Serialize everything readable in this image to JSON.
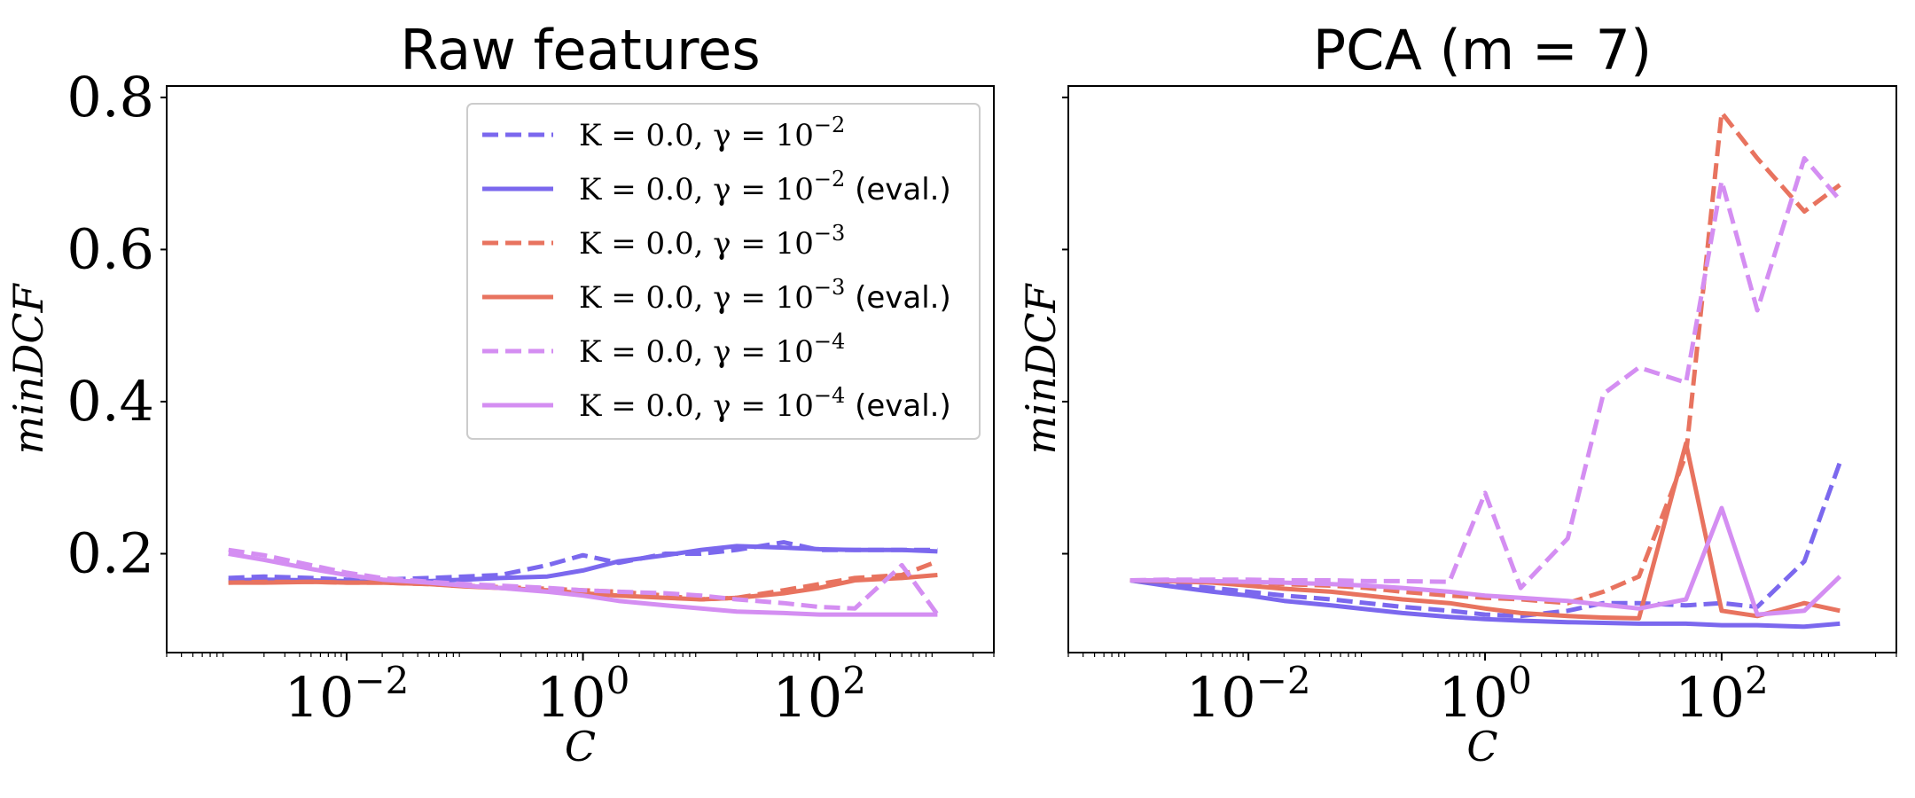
{
  "chart_data": [
    {
      "type": "line",
      "title": "Raw features",
      "xlabel": "C",
      "ylabel": "minDCF",
      "xscale": "log",
      "xlim": [
        0.0003,
        3000
      ],
      "ylim": [
        0.07,
        0.815
      ],
      "xticks": [
        {
          "value": 0.01,
          "base": "10",
          "exp": "−2"
        },
        {
          "value": 1,
          "base": "10",
          "exp": "0"
        },
        {
          "value": 100,
          "base": "10",
          "exp": "2"
        }
      ],
      "yticks": [
        {
          "value": 0.2,
          "label": "0.2"
        },
        {
          "value": 0.4,
          "label": "0.4"
        },
        {
          "value": 0.6,
          "label": "0.6"
        },
        {
          "value": 0.8,
          "label": "0.8"
        }
      ],
      "show_ytick_labels": true,
      "legend": {
        "location": "upper right",
        "entries": [
          {
            "pre": "K = 0.0, γ = 10",
            "exp": "−2",
            "suffix": ""
          },
          {
            "pre": "K = 0.0, γ = 10",
            "exp": "−2",
            "suffix": " (eval.)"
          },
          {
            "pre": "K = 0.0, γ = 10",
            "exp": "−3",
            "suffix": ""
          },
          {
            "pre": "K = 0.0, γ = 10",
            "exp": "−3",
            "suffix": " (eval.)"
          },
          {
            "pre": "K = 0.0, γ = 10",
            "exp": "−4",
            "suffix": ""
          },
          {
            "pre": "K = 0.0, γ = 10",
            "exp": "−4",
            "suffix": " (eval.)"
          }
        ]
      },
      "x": [
        0.001,
        0.002,
        0.005,
        0.01,
        0.02,
        0.05,
        0.1,
        0.2,
        0.5,
        1,
        2,
        5,
        10,
        20,
        50,
        100,
        200,
        500,
        1000
      ],
      "series": [
        {
          "color": "#7b68ee",
          "dashed": true,
          "values": [
            0.168,
            0.17,
            0.168,
            0.166,
            0.166,
            0.168,
            0.17,
            0.172,
            0.185,
            0.198,
            0.188,
            0.2,
            0.2,
            0.205,
            0.215,
            0.205,
            0.205,
            0.205,
            0.205
          ]
        },
        {
          "color": "#7b68ee",
          "dashed": false,
          "values": [
            0.165,
            0.166,
            0.165,
            0.164,
            0.163,
            0.164,
            0.166,
            0.168,
            0.17,
            0.178,
            0.19,
            0.198,
            0.205,
            0.21,
            0.208,
            0.206,
            0.205,
            0.205,
            0.203
          ]
        },
        {
          "color": "#e8735f",
          "dashed": true,
          "values": [
            0.162,
            0.163,
            0.163,
            0.162,
            0.162,
            0.16,
            0.158,
            0.156,
            0.154,
            0.152,
            0.15,
            0.145,
            0.14,
            0.142,
            0.152,
            0.16,
            0.168,
            0.172,
            0.19
          ]
        },
        {
          "color": "#e8735f",
          "dashed": false,
          "values": [
            0.162,
            0.162,
            0.163,
            0.162,
            0.162,
            0.16,
            0.157,
            0.155,
            0.152,
            0.148,
            0.145,
            0.142,
            0.14,
            0.142,
            0.148,
            0.155,
            0.165,
            0.168,
            0.172
          ]
        },
        {
          "color": "#d48ef2",
          "dashed": true,
          "values": [
            0.205,
            0.198,
            0.185,
            0.175,
            0.168,
            0.163,
            0.16,
            0.158,
            0.155,
            0.152,
            0.15,
            0.148,
            0.145,
            0.14,
            0.135,
            0.13,
            0.128,
            0.185,
            0.12
          ]
        },
        {
          "color": "#d48ef2",
          "dashed": false,
          "values": [
            0.2,
            0.192,
            0.18,
            0.172,
            0.166,
            0.162,
            0.158,
            0.155,
            0.15,
            0.145,
            0.138,
            0.132,
            0.128,
            0.124,
            0.122,
            0.12,
            0.12,
            0.12,
            0.12
          ]
        }
      ]
    },
    {
      "type": "line",
      "title": "PCA (m = 7)",
      "xlabel": "C",
      "ylabel": "minDCF",
      "xscale": "log",
      "xlim": [
        0.0003,
        3000
      ],
      "ylim": [
        0.07,
        0.815
      ],
      "xticks": [
        {
          "value": 0.01,
          "base": "10",
          "exp": "−2"
        },
        {
          "value": 1,
          "base": "10",
          "exp": "0"
        },
        {
          "value": 100,
          "base": "10",
          "exp": "2"
        }
      ],
      "yticks": [
        {
          "value": 0.2,
          "label": ""
        },
        {
          "value": 0.4,
          "label": ""
        },
        {
          "value": 0.6,
          "label": ""
        },
        {
          "value": 0.8,
          "label": ""
        }
      ],
      "show_ytick_labels": false,
      "x": [
        0.001,
        0.002,
        0.005,
        0.01,
        0.02,
        0.05,
        0.1,
        0.2,
        0.5,
        1,
        2,
        5,
        10,
        20,
        50,
        100,
        200,
        500,
        1000
      ],
      "series": [
        {
          "color": "#7b68ee",
          "dashed": true,
          "values": [
            0.165,
            0.16,
            0.155,
            0.15,
            0.145,
            0.14,
            0.135,
            0.13,
            0.125,
            0.12,
            0.118,
            0.125,
            0.135,
            0.135,
            0.132,
            0.135,
            0.13,
            0.19,
            0.32
          ]
        },
        {
          "color": "#7b68ee",
          "dashed": false,
          "values": [
            0.165,
            0.158,
            0.15,
            0.145,
            0.138,
            0.132,
            0.127,
            0.122,
            0.117,
            0.114,
            0.112,
            0.11,
            0.109,
            0.108,
            0.108,
            0.106,
            0.106,
            0.104,
            0.108
          ]
        },
        {
          "color": "#e8735f",
          "dashed": true,
          "values": [
            0.165,
            0.165,
            0.164,
            0.162,
            0.16,
            0.158,
            0.155,
            0.15,
            0.145,
            0.142,
            0.14,
            0.135,
            0.15,
            0.17,
            0.33,
            0.78,
            0.72,
            0.65,
            0.685
          ]
        },
        {
          "color": "#e8735f",
          "dashed": false,
          "values": [
            0.165,
            0.164,
            0.162,
            0.158,
            0.154,
            0.15,
            0.145,
            0.14,
            0.135,
            0.128,
            0.122,
            0.118,
            0.116,
            0.115,
            0.345,
            0.125,
            0.118,
            0.135,
            0.125
          ]
        },
        {
          "color": "#d48ef2",
          "dashed": true,
          "values": [
            0.165,
            0.166,
            0.166,
            0.166,
            0.165,
            0.165,
            0.164,
            0.164,
            0.163,
            0.28,
            0.155,
            0.22,
            0.41,
            0.445,
            0.425,
            0.69,
            0.52,
            0.72,
            0.665
          ]
        },
        {
          "color": "#d48ef2",
          "dashed": false,
          "values": [
            0.165,
            0.165,
            0.164,
            0.163,
            0.162,
            0.16,
            0.158,
            0.155,
            0.15,
            0.145,
            0.142,
            0.138,
            0.133,
            0.128,
            0.14,
            0.26,
            0.12,
            0.125,
            0.17
          ]
        }
      ]
    }
  ]
}
